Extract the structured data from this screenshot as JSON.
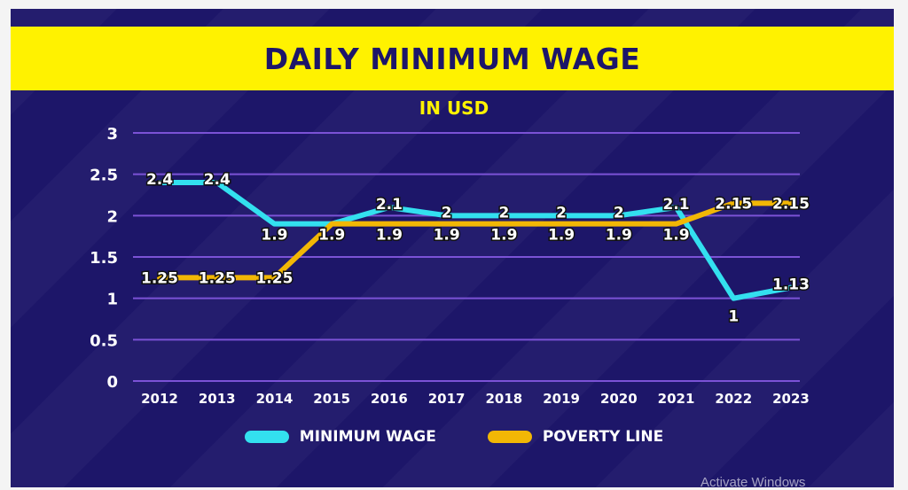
{
  "chart_data": {
    "type": "line",
    "title": "DAILY MINIMUM WAGE",
    "subtitle": "IN USD",
    "categories": [
      "2012",
      "2013",
      "2014",
      "2015",
      "2016",
      "2017",
      "2018",
      "2019",
      "2020",
      "2021",
      "2022",
      "2023"
    ],
    "y_ticks": [
      "0",
      "0.5",
      "1",
      "1.5",
      "2",
      "2.5",
      "3"
    ],
    "ylim": [
      0,
      3
    ],
    "grid": true,
    "legend_position": "bottom",
    "series": [
      {
        "name": "MINIMUM WAGE",
        "color": "#33e0ef",
        "values": [
          2.4,
          2.4,
          1.9,
          1.9,
          2.1,
          2,
          2,
          2,
          2,
          2.1,
          1,
          1.13
        ],
        "labels": [
          "2.4",
          "2.4",
          "1.9",
          "1.9",
          "2.1",
          "2",
          "2",
          "2",
          "2",
          "2.1",
          "1",
          "1.13"
        ]
      },
      {
        "name": "POVERTY LINE",
        "color": "#f2b705",
        "values": [
          1.25,
          1.25,
          1.25,
          1.9,
          1.9,
          1.9,
          1.9,
          1.9,
          1.9,
          1.9,
          2.15,
          2.15
        ],
        "labels": [
          "1.25",
          "1.25",
          "1.25",
          "1.9",
          "1.9",
          "1.9",
          "1.9",
          "1.9",
          "1.9",
          "1.9",
          "2.15",
          "2.15"
        ]
      }
    ]
  },
  "watermark": "Activate Windows",
  "colors": {
    "background": "#1d1669",
    "banner": "#fff200",
    "subtitle": "#fff200",
    "grid": "#7b52d6",
    "text": "#ffffff"
  }
}
